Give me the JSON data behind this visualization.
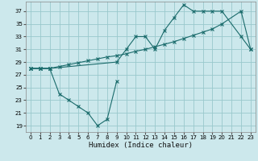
{
  "xlabel": "Humidex (Indice chaleur)",
  "bg_color": "#cce8ec",
  "grid_color": "#99c8cc",
  "line_color": "#1a6b6b",
  "xlim": [
    -0.5,
    23.5
  ],
  "ylim": [
    18.0,
    38.5
  ],
  "yticks": [
    19,
    21,
    23,
    25,
    27,
    29,
    31,
    33,
    35,
    37
  ],
  "xticks": [
    0,
    1,
    2,
    3,
    4,
    5,
    6,
    7,
    8,
    9,
    10,
    11,
    12,
    13,
    14,
    15,
    16,
    17,
    18,
    19,
    20,
    21,
    22,
    23
  ],
  "line_straight_x": [
    0,
    1,
    2,
    3,
    4,
    5,
    6,
    7,
    8,
    9,
    10,
    11,
    12,
    13,
    14,
    15,
    16,
    17,
    18,
    19,
    20,
    22,
    23
  ],
  "line_straight_y": [
    28,
    28,
    28,
    28.3,
    28.6,
    28.9,
    29.2,
    29.5,
    29.8,
    30.0,
    30.3,
    30.7,
    31.0,
    31.4,
    31.8,
    32.2,
    32.7,
    33.2,
    33.7,
    34.2,
    35.0,
    37.0,
    31
  ],
  "line_upper_x": [
    0,
    1,
    2,
    9,
    10,
    11,
    12,
    13,
    14,
    15,
    16,
    17,
    18,
    19,
    20,
    22,
    23
  ],
  "line_upper_y": [
    28,
    28,
    28,
    29,
    31,
    33,
    33,
    31,
    34,
    36,
    38,
    37,
    37,
    37,
    37,
    33,
    31
  ],
  "line_lower_x": [
    0,
    1,
    2,
    3,
    4,
    5,
    6,
    7,
    8,
    9
  ],
  "line_lower_y": [
    28,
    28,
    28,
    24,
    23,
    22,
    21,
    19,
    20,
    26
  ]
}
